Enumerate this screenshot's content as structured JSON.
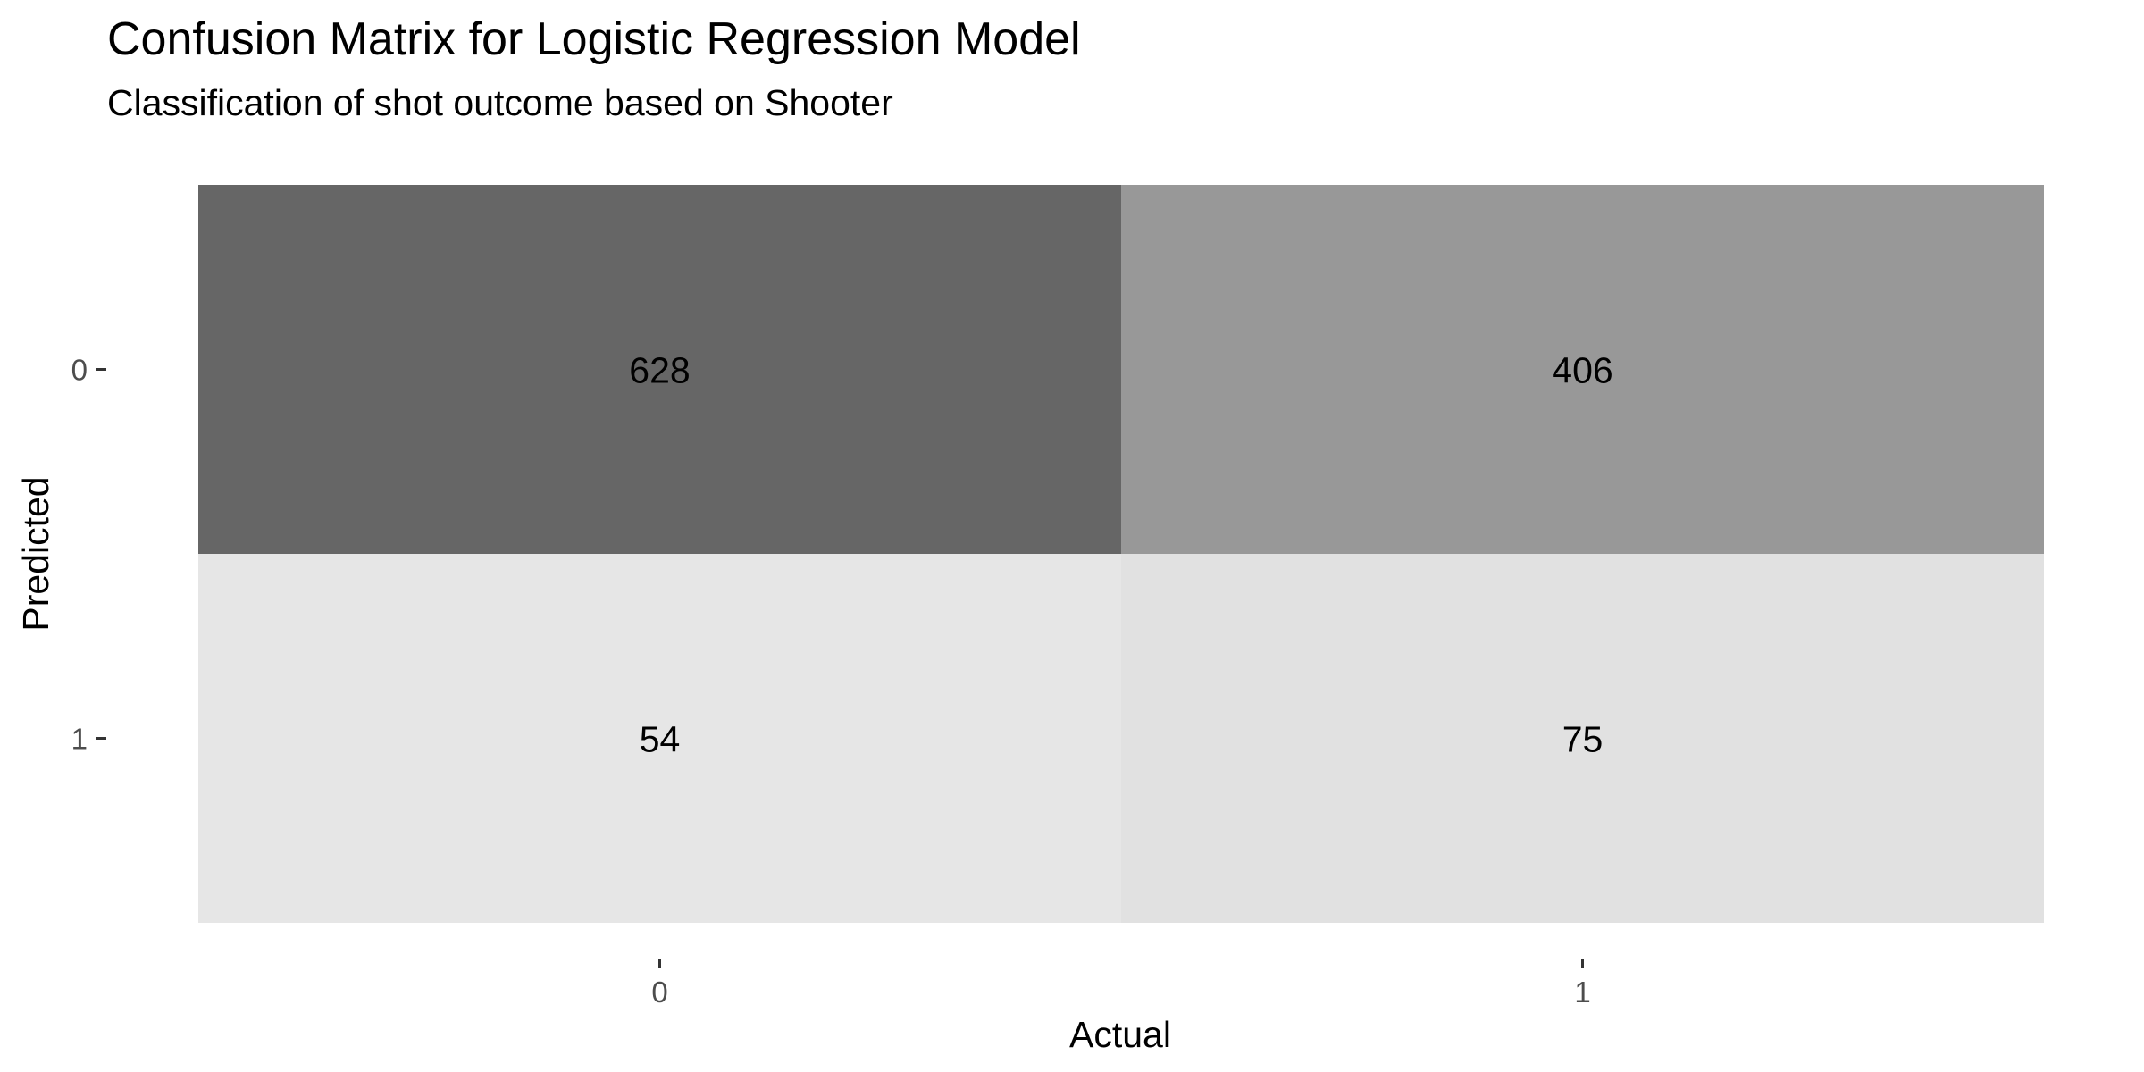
{
  "title": "Confusion Matrix for Logistic Regression Model",
  "subtitle": "Classification of shot outcome based on Shooter",
  "chart_data": {
    "type": "heatmap",
    "title": "Confusion Matrix for Logistic Regression Model",
    "subtitle": "Classification of shot outcome based on Shooter",
    "xlabel": "Actual",
    "ylabel": "Predicted",
    "x_categories": [
      "0",
      "1"
    ],
    "y_categories": [
      "0",
      "1"
    ],
    "cells": [
      {
        "predicted": "0",
        "actual": "0",
        "value": 628
      },
      {
        "predicted": "0",
        "actual": "1",
        "value": 406
      },
      {
        "predicted": "1",
        "actual": "0",
        "value": 54
      },
      {
        "predicted": "1",
        "actual": "1",
        "value": 75
      }
    ],
    "color_scale": {
      "low": "#e6e6e6",
      "high": "#666666"
    },
    "legend": "none",
    "grid": false
  }
}
